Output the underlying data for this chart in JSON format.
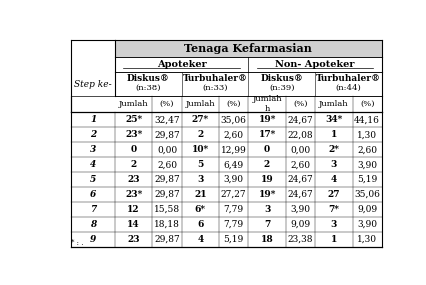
{
  "title": "Tenaga Kefarmasian",
  "rows": [
    {
      "step": "1",
      "data": [
        "25*",
        "32,47",
        "27*",
        "35,06",
        "19*",
        "24,67",
        "34*",
        "44,16"
      ]
    },
    {
      "step": "2",
      "data": [
        "23*",
        "29,87",
        "2",
        "2,60",
        "17*",
        "22,08",
        "1",
        "1,30"
      ]
    },
    {
      "step": "3",
      "data": [
        "0",
        "0,00",
        "10*",
        "12,99",
        "0",
        "0,00",
        "2*",
        "2,60"
      ]
    },
    {
      "step": "4",
      "data": [
        "2",
        "2,60",
        "5",
        "6,49",
        "2",
        "2,60",
        "3",
        "3,90"
      ]
    },
    {
      "step": "5",
      "data": [
        "23",
        "29,87",
        "3",
        "3,90",
        "19",
        "24,67",
        "4",
        "5,19"
      ]
    },
    {
      "step": "6",
      "data": [
        "23*",
        "29,87",
        "21",
        "27,27",
        "19*",
        "24,67",
        "27",
        "35,06"
      ]
    },
    {
      "step": "7",
      "data": [
        "12",
        "15,58",
        "6*",
        "7,79",
        "3",
        "3,90",
        "7*",
        "9,09"
      ]
    },
    {
      "step": "8",
      "data": [
        "14",
        "18,18",
        "6",
        "7,79",
        "7",
        "9,09",
        "3",
        "3,90"
      ]
    },
    {
      "step": "9",
      "data": [
        "23",
        "29,87",
        "4",
        "5,19",
        "18",
        "23,38",
        "1",
        "1,30"
      ]
    }
  ],
  "bold_jumlah_cols": [
    0,
    2,
    4,
    6
  ],
  "header_bg": "#d0d0d0",
  "bg_color": "#ffffff",
  "font_size": 6.5,
  "title_font_size": 8.0,
  "header_font_size": 7.0
}
